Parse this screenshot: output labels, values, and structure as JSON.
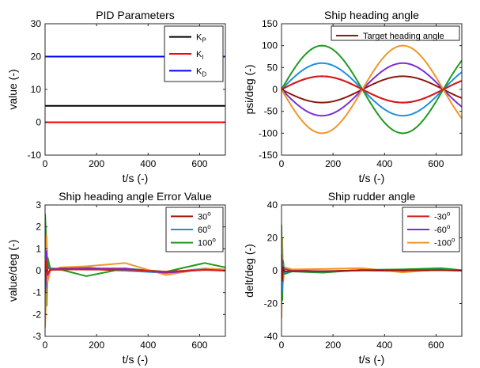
{
  "chart_data": [
    {
      "type": "line",
      "title": "PID Parameters",
      "xlabel": "t/s (-)",
      "ylabel": "value (-)",
      "xlim": [
        0,
        700
      ],
      "ylim": [
        -10,
        30
      ],
      "xticks": [
        0,
        200,
        400,
        600
      ],
      "yticks": [
        -10,
        0,
        10,
        20,
        30
      ],
      "legend_position": "top-right",
      "series": [
        {
          "name": "K",
          "sub": "P",
          "color": "#000000",
          "x": [
            0,
            700
          ],
          "y": [
            5,
            5
          ]
        },
        {
          "name": "K",
          "sub": "I",
          "color": "#ff0000",
          "x": [
            0,
            700
          ],
          "y": [
            0,
            0
          ]
        },
        {
          "name": "K",
          "sub": "D",
          "color": "#0000ff",
          "x": [
            0,
            700
          ],
          "y": [
            20,
            20
          ]
        }
      ]
    },
    {
      "type": "line",
      "title": "Ship heading angle",
      "xlabel": "t/s (-)",
      "ylabel": "psi/deg (-)",
      "xlim": [
        0,
        700
      ],
      "ylim": [
        -150,
        150
      ],
      "xticks": [
        0,
        200,
        400,
        600
      ],
      "yticks": [
        -150,
        -100,
        -50,
        0,
        50,
        100,
        150
      ],
      "legend_position": "top-right",
      "legend": [
        "Target heading angle"
      ],
      "period": 628,
      "series": [
        {
          "name": "Target heading angle",
          "color": "#8b1a10",
          "amplitude": 30
        },
        {
          "color": "#8b1a10",
          "amplitude": -30
        },
        {
          "color": "#1f8fe0",
          "amplitude": 60
        },
        {
          "color": "#7a2fd6",
          "amplitude": -60
        },
        {
          "color": "#1f9a1f",
          "amplitude": 100
        },
        {
          "color": "#f0962a",
          "amplitude": -100
        },
        {
          "color": "#d81b1b",
          "amplitude": 30
        }
      ]
    },
    {
      "type": "line",
      "title": "Ship heading angle Error Value",
      "xlabel": "t/s (-)",
      "ylabel": "value/deg (-)",
      "xlim": [
        0,
        700
      ],
      "ylim": [
        -3,
        3
      ],
      "xticks": [
        0,
        200,
        400,
        600
      ],
      "yticks": [
        -3,
        -2,
        -1,
        0,
        1,
        2,
        3
      ],
      "legend_position": "top-right",
      "series": [
        {
          "name": "30",
          "sup": "o",
          "color": "#a0140a",
          "x": [
            0,
            3,
            6,
            10,
            20,
            60,
            160,
            310,
            470,
            620,
            700
          ],
          "y": [
            0.9,
            0.6,
            -0.7,
            0.2,
            0.05,
            0.04,
            0.08,
            0.0,
            -0.05,
            0.05,
            0.02
          ]
        },
        {
          "name": "60",
          "sup": "o",
          "color": "#1f8fe0",
          "x": [
            0,
            3,
            6,
            10,
            20,
            60,
            160,
            310,
            470,
            620,
            700
          ],
          "y": [
            1.5,
            1.0,
            -1.0,
            0.3,
            0.1,
            0.1,
            0.15,
            0.0,
            -0.1,
            0.1,
            0.05
          ]
        },
        {
          "name": "100",
          "sup": "o",
          "color": "#1f9a1f",
          "x": [
            0,
            3,
            6,
            10,
            20,
            60,
            160,
            310,
            470,
            620,
            700
          ],
          "y": [
            2.6,
            1.8,
            -1.6,
            0.6,
            0.1,
            0.05,
            -0.25,
            0.1,
            -0.05,
            0.35,
            0.15
          ]
        },
        {
          "color": "#f0962a",
          "x": [
            0,
            3,
            6,
            10,
            20,
            60,
            160,
            310,
            470,
            620,
            700
          ],
          "y": [
            -2.6,
            -1.6,
            1.6,
            -0.5,
            0.0,
            0.15,
            0.2,
            0.35,
            -0.2,
            0.1,
            0.05
          ]
        },
        {
          "color": "#7a2fd6",
          "x": [
            0,
            3,
            6,
            10,
            20,
            60,
            160,
            310,
            470,
            620,
            700
          ],
          "y": [
            -1.0,
            -0.6,
            0.9,
            -0.2,
            0.05,
            0.1,
            0.1,
            0.1,
            -0.1,
            0.05,
            0.0
          ]
        },
        {
          "color": "#d81b1b",
          "x": [
            0,
            3,
            6,
            10,
            20,
            60,
            160,
            310,
            470,
            620,
            700
          ],
          "y": [
            -0.5,
            -0.3,
            0.5,
            -0.1,
            0.03,
            0.06,
            0.05,
            0.05,
            -0.05,
            0.03,
            0.0
          ]
        }
      ]
    },
    {
      "type": "line",
      "title": "Ship rudder angle",
      "xlabel": "t/s (-)",
      "ylabel": "delt/deg (-)",
      "xlim": [
        0,
        700
      ],
      "ylim": [
        -40,
        40
      ],
      "xticks": [
        0,
        200,
        400,
        600
      ],
      "yticks": [
        -40,
        -20,
        0,
        20,
        40
      ],
      "legend_position": "top-right",
      "series": [
        {
          "name": "-30",
          "sup": "o",
          "color": "#d81b1b",
          "x": [
            0,
            3,
            6,
            12,
            40,
            160,
            310,
            470,
            620,
            700
          ],
          "y": [
            -12,
            8,
            -3,
            1,
            0.3,
            -0.5,
            0.3,
            -0.3,
            0.4,
            0.0
          ]
        },
        {
          "name": "-60",
          "sup": "o",
          "color": "#7a2fd6",
          "x": [
            0,
            3,
            6,
            12,
            40,
            160,
            310,
            470,
            620,
            700
          ],
          "y": [
            -20,
            14,
            -5,
            1.5,
            0.5,
            -0.7,
            0.4,
            -0.4,
            0.6,
            0.0
          ]
        },
        {
          "name": "-100",
          "sup": "o",
          "color": "#f0962a",
          "x": [
            0,
            3,
            6,
            12,
            40,
            160,
            310,
            470,
            620,
            700
          ],
          "y": [
            -29,
            20,
            -7,
            2,
            0.8,
            1.0,
            1.5,
            -1.0,
            0.8,
            0.0
          ]
        },
        {
          "color": "#1f9a1f",
          "x": [
            0,
            3,
            6,
            12,
            40,
            160,
            310,
            470,
            620,
            700
          ],
          "y": [
            28,
            -18,
            6,
            -2,
            -0.5,
            -1.2,
            0.5,
            0.8,
            1.5,
            0.3
          ]
        },
        {
          "color": "#1f8fe0",
          "x": [
            0,
            3,
            6,
            12,
            40,
            160,
            310,
            470,
            620,
            700
          ],
          "y": [
            18,
            -12,
            4,
            -1,
            -0.3,
            -0.6,
            0.2,
            0.3,
            0.6,
            0.1
          ]
        },
        {
          "color": "#a0140a",
          "x": [
            0,
            3,
            6,
            12,
            40,
            160,
            310,
            470,
            620,
            700
          ],
          "y": [
            10,
            -6,
            2,
            -0.5,
            -0.2,
            -0.3,
            0.1,
            0.2,
            0.3,
            0.0
          ]
        }
      ]
    }
  ]
}
